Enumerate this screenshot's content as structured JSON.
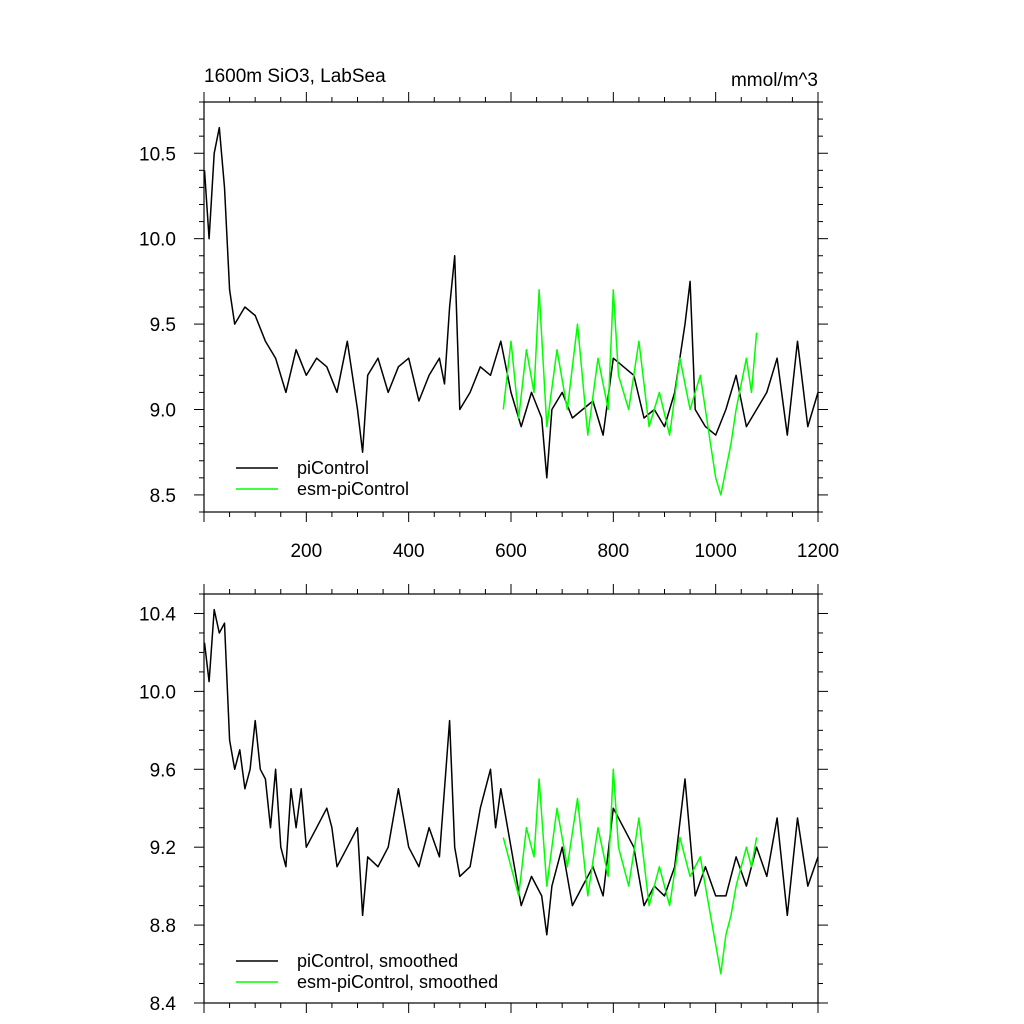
{
  "chart_data": [
    {
      "type": "line",
      "title": "1600m SiO3, LabSea",
      "units": "mmol/m^3",
      "xlim": [
        0,
        1200
      ],
      "ylim": [
        8.4,
        10.8
      ],
      "xticks": [
        "200",
        "400",
        "600",
        "800",
        "1000",
        "1200"
      ],
      "yticks": [
        "8.5",
        "9.0",
        "9.5",
        "10.0",
        "10.5"
      ],
      "legend_position": "bottom-left",
      "grid": false,
      "series": [
        {
          "name": "piControl",
          "color": "#000000",
          "x": [
            1,
            10,
            20,
            30,
            40,
            50,
            60,
            80,
            100,
            120,
            140,
            160,
            180,
            200,
            220,
            240,
            260,
            280,
            300,
            310,
            320,
            340,
            360,
            380,
            400,
            420,
            440,
            460,
            470,
            480,
            490,
            500,
            520,
            540,
            560,
            580,
            600,
            620,
            640,
            660,
            670,
            680,
            700,
            720,
            740,
            760,
            780,
            800,
            820,
            840,
            860,
            880,
            900,
            920,
            940,
            950,
            960,
            980,
            1000,
            1020,
            1040,
            1060,
            1080,
            1100,
            1120,
            1140,
            1160,
            1180,
            1200
          ],
          "y": [
            10.4,
            10.0,
            10.5,
            10.65,
            10.3,
            9.7,
            9.5,
            9.6,
            9.55,
            9.4,
            9.3,
            9.1,
            9.35,
            9.2,
            9.3,
            9.25,
            9.1,
            9.4,
            9.0,
            8.75,
            9.2,
            9.3,
            9.1,
            9.25,
            9.3,
            9.05,
            9.2,
            9.3,
            9.15,
            9.6,
            9.9,
            9.0,
            9.1,
            9.25,
            9.2,
            9.4,
            9.1,
            8.9,
            9.1,
            8.95,
            8.6,
            9.0,
            9.1,
            8.95,
            9.0,
            9.05,
            8.85,
            9.3,
            9.25,
            9.2,
            8.95,
            9.0,
            8.9,
            9.1,
            9.5,
            9.75,
            9.0,
            8.9,
            8.85,
            9.0,
            9.2,
            8.9,
            9.0,
            9.1,
            9.3,
            8.85,
            9.4,
            8.9,
            9.1
          ]
        },
        {
          "name": "esm-piControl",
          "color": "#00ff00",
          "x": [
            585,
            600,
            615,
            630,
            645,
            655,
            670,
            690,
            710,
            730,
            750,
            770,
            790,
            800,
            810,
            830,
            850,
            870,
            890,
            910,
            930,
            950,
            970,
            990,
            1000,
            1010,
            1020,
            1030,
            1040,
            1060,
            1070,
            1080
          ],
          "y": [
            9.0,
            9.4,
            8.95,
            9.35,
            9.1,
            9.7,
            8.9,
            9.35,
            9.0,
            9.5,
            8.85,
            9.3,
            9.0,
            9.7,
            9.2,
            9.0,
            9.4,
            8.9,
            9.1,
            8.85,
            9.3,
            9.0,
            9.2,
            8.8,
            8.6,
            8.5,
            8.65,
            8.8,
            9.0,
            9.3,
            9.1,
            9.45
          ]
        }
      ]
    },
    {
      "type": "line",
      "xlim": [
        0,
        1200
      ],
      "ylim": [
        8.4,
        10.5
      ],
      "xticks": [],
      "yticks": [
        "8.4",
        "8.8",
        "9.2",
        "9.6",
        "10.0",
        "10.4"
      ],
      "legend_position": "bottom-left",
      "grid": false,
      "series": [
        {
          "name": "piControl, smoothed",
          "color": "#000000",
          "x": [
            1,
            10,
            20,
            30,
            40,
            50,
            60,
            70,
            80,
            90,
            100,
            110,
            120,
            130,
            140,
            150,
            160,
            170,
            180,
            190,
            200,
            220,
            240,
            250,
            260,
            280,
            300,
            310,
            320,
            340,
            360,
            380,
            400,
            420,
            440,
            460,
            470,
            480,
            490,
            500,
            520,
            540,
            560,
            570,
            580,
            600,
            620,
            640,
            660,
            670,
            680,
            700,
            720,
            740,
            760,
            780,
            800,
            820,
            840,
            860,
            880,
            900,
            920,
            940,
            950,
            960,
            980,
            1000,
            1020,
            1040,
            1060,
            1080,
            1100,
            1120,
            1140,
            1160,
            1180,
            1200
          ],
          "y": [
            10.25,
            10.05,
            10.42,
            10.3,
            10.35,
            9.75,
            9.6,
            9.7,
            9.5,
            9.6,
            9.85,
            9.6,
            9.55,
            9.3,
            9.6,
            9.2,
            9.1,
            9.5,
            9.3,
            9.5,
            9.2,
            9.3,
            9.4,
            9.3,
            9.1,
            9.2,
            9.3,
            8.85,
            9.15,
            9.1,
            9.2,
            9.5,
            9.2,
            9.1,
            9.3,
            9.15,
            9.5,
            9.85,
            9.2,
            9.05,
            9.1,
            9.4,
            9.6,
            9.3,
            9.5,
            9.2,
            8.9,
            9.05,
            8.95,
            8.75,
            9.0,
            9.2,
            8.9,
            9.0,
            9.1,
            8.95,
            9.4,
            9.3,
            9.2,
            8.9,
            9.0,
            8.95,
            9.1,
            9.55,
            9.25,
            8.95,
            9.1,
            8.95,
            8.95,
            9.15,
            9.0,
            9.2,
            9.05,
            9.35,
            8.85,
            9.35,
            9.0,
            9.15
          ]
        },
        {
          "name": "esm-piControl, smoothed",
          "color": "#00ff00",
          "x": [
            585,
            600,
            615,
            630,
            645,
            655,
            670,
            690,
            710,
            730,
            750,
            770,
            790,
            800,
            810,
            830,
            850,
            870,
            890,
            910,
            930,
            950,
            970,
            990,
            1000,
            1010,
            1020,
            1030,
            1040,
            1060,
            1070,
            1080
          ],
          "y": [
            9.25,
            9.1,
            8.95,
            9.3,
            9.15,
            9.55,
            9.0,
            9.4,
            9.1,
            9.45,
            8.95,
            9.3,
            9.05,
            9.6,
            9.2,
            9.0,
            9.35,
            8.9,
            9.1,
            8.9,
            9.25,
            9.05,
            9.15,
            8.85,
            8.7,
            8.55,
            8.75,
            8.85,
            9.0,
            9.2,
            9.1,
            9.25
          ]
        }
      ]
    }
  ]
}
